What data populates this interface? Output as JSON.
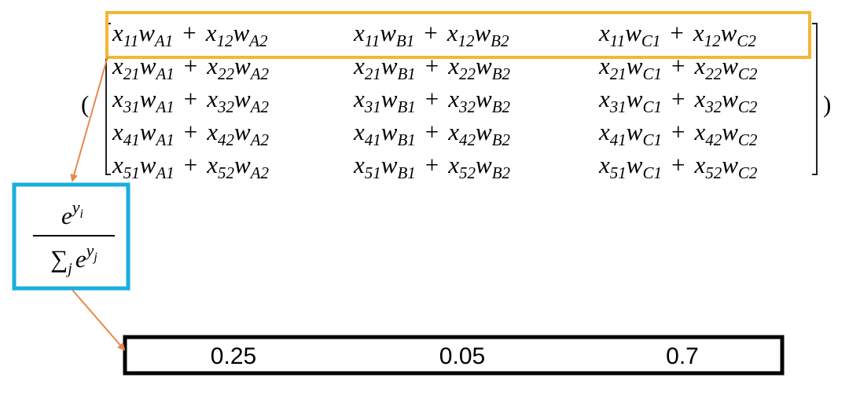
{
  "matrix": {
    "open": "(",
    "close": ")",
    "rows": [
      [
        [
          {
            "t": "x",
            "sub": "11"
          },
          {
            "t": "w",
            "sub": "A1"
          },
          {
            "t": "+"
          },
          {
            "t": "x",
            "sub": "12"
          },
          {
            "t": "w",
            "sub": "A2"
          }
        ],
        [
          {
            "t": "x",
            "sub": "11"
          },
          {
            "t": "w",
            "sub": "B1"
          },
          {
            "t": "+"
          },
          {
            "t": "x",
            "sub": "12"
          },
          {
            "t": "w",
            "sub": "B2"
          }
        ],
        [
          {
            "t": "x",
            "sub": "11"
          },
          {
            "t": "w",
            "sub": "C1"
          },
          {
            "t": "+"
          },
          {
            "t": "x",
            "sub": "12"
          },
          {
            "t": "w",
            "sub": "C2"
          }
        ]
      ],
      [
        [
          {
            "t": "x",
            "sub": "21"
          },
          {
            "t": "w",
            "sub": "A1"
          },
          {
            "t": "+"
          },
          {
            "t": "x",
            "sub": "22"
          },
          {
            "t": "w",
            "sub": "A2"
          }
        ],
        [
          {
            "t": "x",
            "sub": "21"
          },
          {
            "t": "w",
            "sub": "B1"
          },
          {
            "t": "+"
          },
          {
            "t": "x",
            "sub": "22"
          },
          {
            "t": "w",
            "sub": "B2"
          }
        ],
        [
          {
            "t": "x",
            "sub": "21"
          },
          {
            "t": "w",
            "sub": "C1"
          },
          {
            "t": "+"
          },
          {
            "t": "x",
            "sub": "22"
          },
          {
            "t": "w",
            "sub": "C2"
          }
        ]
      ],
      [
        [
          {
            "t": "x",
            "sub": "31"
          },
          {
            "t": "w",
            "sub": "A1"
          },
          {
            "t": "+"
          },
          {
            "t": "x",
            "sub": "32"
          },
          {
            "t": "w",
            "sub": "A2"
          }
        ],
        [
          {
            "t": "x",
            "sub": "31"
          },
          {
            "t": "w",
            "sub": "B1"
          },
          {
            "t": "+"
          },
          {
            "t": "x",
            "sub": "32"
          },
          {
            "t": "w",
            "sub": "B2"
          }
        ],
        [
          {
            "t": "x",
            "sub": "31"
          },
          {
            "t": "w",
            "sub": "C1"
          },
          {
            "t": "+"
          },
          {
            "t": "x",
            "sub": "32"
          },
          {
            "t": "w",
            "sub": "C2"
          }
        ]
      ],
      [
        [
          {
            "t": "x",
            "sub": "41"
          },
          {
            "t": "w",
            "sub": "A1"
          },
          {
            "t": "+"
          },
          {
            "t": "x",
            "sub": "42"
          },
          {
            "t": "w",
            "sub": "A2"
          }
        ],
        [
          {
            "t": "x",
            "sub": "41"
          },
          {
            "t": "w",
            "sub": "B1"
          },
          {
            "t": "+"
          },
          {
            "t": "x",
            "sub": "42"
          },
          {
            "t": "w",
            "sub": "B2"
          }
        ],
        [
          {
            "t": "x",
            "sub": "41"
          },
          {
            "t": "w",
            "sub": "C1"
          },
          {
            "t": "+"
          },
          {
            "t": "x",
            "sub": "42"
          },
          {
            "t": "w",
            "sub": "C2"
          }
        ]
      ],
      [
        [
          {
            "t": "x",
            "sub": "51"
          },
          {
            "t": "w",
            "sub": "A1"
          },
          {
            "t": "+"
          },
          {
            "t": "x",
            "sub": "52"
          },
          {
            "t": "w",
            "sub": "A2"
          }
        ],
        [
          {
            "t": "x",
            "sub": "51"
          },
          {
            "t": "w",
            "sub": "B1"
          },
          {
            "t": "+"
          },
          {
            "t": "x",
            "sub": "52"
          },
          {
            "t": "w",
            "sub": "B2"
          }
        ],
        [
          {
            "t": "x",
            "sub": "51"
          },
          {
            "t": "w",
            "sub": "C1"
          },
          {
            "t": "+"
          },
          {
            "t": "x",
            "sub": "52"
          },
          {
            "t": "w",
            "sub": "C2"
          }
        ]
      ]
    ]
  },
  "softmax": {
    "num": {
      "base": "e",
      "sup": "y",
      "supsub": "i"
    },
    "den": {
      "sum": "∑",
      "sub": "j",
      "base": "e",
      "sup": "y",
      "supsub": "j"
    }
  },
  "output": {
    "values": [
      "0.25",
      "0.05",
      "0.7"
    ]
  }
}
